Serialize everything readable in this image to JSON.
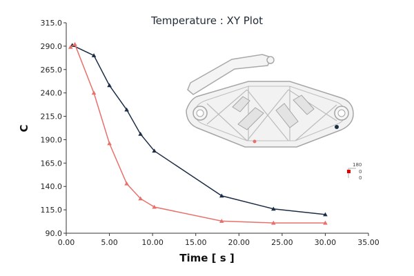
{
  "chart_data": {
    "type": "line",
    "title": "Temperature : XY Plot",
    "xlabel": "Time [ s ]",
    "ylabel": "C",
    "xlim": [
      0,
      35
    ],
    "ylim": [
      90,
      315
    ],
    "x_ticks": [
      "0.00",
      "5.00",
      "10.00",
      "15.00",
      "20.00",
      "25.00",
      "30.00",
      "35.00"
    ],
    "x_tick_values": [
      0,
      5,
      10,
      15,
      20,
      25,
      30,
      35
    ],
    "y_ticks": [
      "90.0",
      "115.0",
      "140.0",
      "165.0",
      "190.0",
      "215.0",
      "240.0",
      "265.0",
      "290.0",
      "315.0"
    ],
    "y_tick_values": [
      90,
      115,
      140,
      165,
      190,
      215,
      240,
      265,
      290,
      315
    ],
    "grid": false,
    "legend": false,
    "series": [
      {
        "color": "#1b2d45",
        "marker": "triangle",
        "x": [
          0.7,
          3.2,
          5.0,
          7.0,
          8.6,
          10.2,
          18.0,
          24.0,
          30.0
        ],
        "y": [
          291,
          280,
          248,
          222,
          196,
          178,
          130,
          116,
          110
        ]
      },
      {
        "color": "#e8706b",
        "marker": "triangle",
        "x": [
          0.5,
          1.0,
          3.2,
          5.0,
          7.0,
          8.6,
          10.2,
          18.0,
          24.0,
          30.0
        ],
        "y": [
          289,
          292,
          240,
          186,
          143,
          127,
          118,
          103,
          101,
          101
        ]
      }
    ]
  },
  "legend_scale": {
    "top": "180",
    "mid": "0",
    "bottom": "0"
  }
}
